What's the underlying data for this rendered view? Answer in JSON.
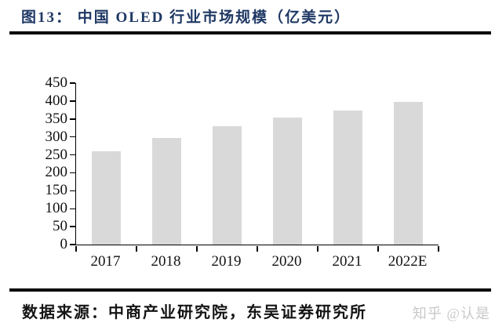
{
  "page": {
    "background_color": "#ffffff"
  },
  "header": {
    "title": "图13： 中国 OLED 行业市场规模（亿美元）",
    "title_color": "#1f3864"
  },
  "chart_data": {
    "type": "bar",
    "title": "中国 OLED 行业市场规模（亿美元）",
    "unit": "亿美元",
    "categories": [
      "2017",
      "2018",
      "2019",
      "2020",
      "2021",
      "2022E"
    ],
    "values": [
      259,
      297,
      331,
      354,
      373,
      398
    ],
    "xlabel": "",
    "ylabel": "",
    "ylim": [
      0,
      450
    ],
    "yticks": [
      0,
      50,
      100,
      150,
      200,
      250,
      300,
      350,
      400,
      450
    ],
    "grid": false,
    "legend": false,
    "bar_color": "#d9d9d9",
    "axis_color": "#000000",
    "tick_label_color": "#111111"
  },
  "footer": {
    "source_label": "数据来源：中商产业研究院，东吴证券研究所",
    "watermark": "知乎 @认是",
    "watermark_color": "#c9c9c9"
  }
}
